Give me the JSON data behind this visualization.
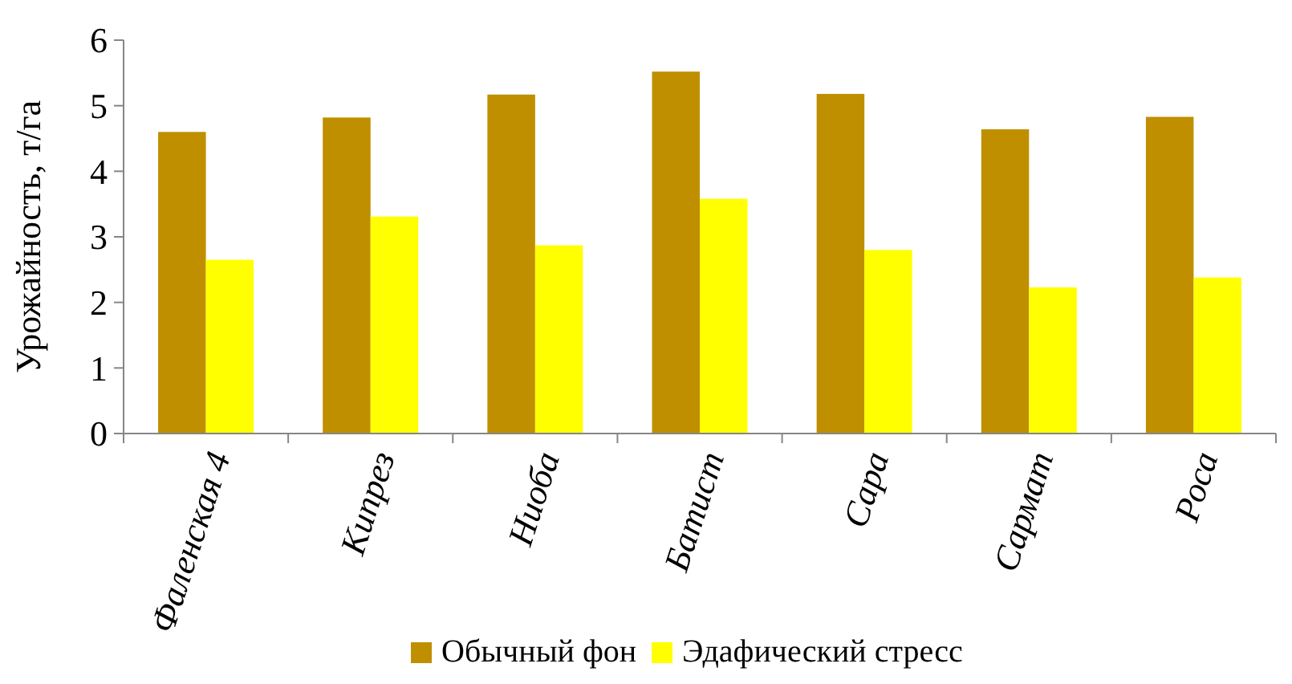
{
  "chart_data": {
    "type": "bar",
    "ylabel": "Урожайность, т/га",
    "categories": [
      "Фаленская 4",
      "Кипрез",
      "Ниоба",
      "Батист",
      "Сара",
      "Сармат",
      "Роса"
    ],
    "series": [
      {
        "name": "Обычный фон",
        "color": "#bf8f00",
        "values": [
          4.6,
          4.82,
          5.17,
          5.52,
          5.18,
          4.64,
          4.83
        ]
      },
      {
        "name": "Эдафический стресс",
        "color": "#ffff00",
        "values": [
          2.65,
          3.31,
          2.87,
          3.58,
          2.8,
          2.23,
          2.38
        ]
      }
    ],
    "ylim": [
      0,
      6
    ],
    "yticks": [
      0,
      1,
      2,
      3,
      4,
      5,
      6
    ],
    "grid": false,
    "legend": "bottom"
  }
}
